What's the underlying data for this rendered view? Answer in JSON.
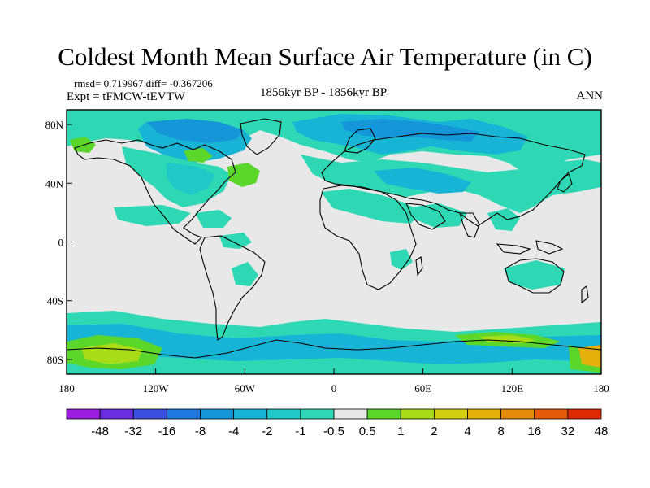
{
  "title": "Coldest Month Mean Surface Air Temperature (in C)",
  "stats": "rmsd= 0.719967  diff= -0.367206",
  "experiment": "Expt = tFMCW-tEVTW",
  "period": "1856kyr BP - 1856kyr BP",
  "season": "ANN",
  "axes": {
    "lat_ticks": [
      {
        "value": 80,
        "label": "80N"
      },
      {
        "value": 40,
        "label": "40N"
      },
      {
        "value": 0,
        "label": "0"
      },
      {
        "value": -40,
        "label": "40S"
      },
      {
        "value": -80,
        "label": "80S"
      }
    ],
    "lon_ticks": [
      {
        "value": -180,
        "label": "180"
      },
      {
        "value": -120,
        "label": "120W"
      },
      {
        "value": -60,
        "label": "60W"
      },
      {
        "value": 0,
        "label": "0"
      },
      {
        "value": 60,
        "label": "60E"
      },
      {
        "value": 120,
        "label": "120E"
      },
      {
        "value": 180,
        "label": "180"
      }
    ],
    "lat_range": [
      -90,
      90
    ],
    "lon_range": [
      -180,
      180
    ]
  },
  "colorbar": {
    "labels": [
      "-48",
      "-32",
      "-16",
      "-8",
      "-4",
      "-2",
      "-1",
      "-0.5",
      "0.5",
      "1",
      "2",
      "4",
      "8",
      "16",
      "32",
      "48"
    ],
    "colors": [
      "#9a1de0",
      "#6a2ee0",
      "#3a4fe0",
      "#1f78e0",
      "#1596d8",
      "#17b4d6",
      "#20c9c8",
      "#2fd8b4",
      "#e8e8e8",
      "#5bd62a",
      "#a8dc18",
      "#d2d010",
      "#e4b00c",
      "#e48a0a",
      "#e45a08",
      "#e02a06"
    ]
  },
  "map_colors": {
    "neutral": "#e8e8e8",
    "light_teal": "#2fd8b4",
    "teal": "#20c9c8",
    "cyan": "#17b4d6",
    "blue": "#1596d8",
    "light_green": "#5bd62a",
    "yellow_green": "#a8dc18",
    "yellow": "#d2d010",
    "orange": "#e4b00c"
  }
}
